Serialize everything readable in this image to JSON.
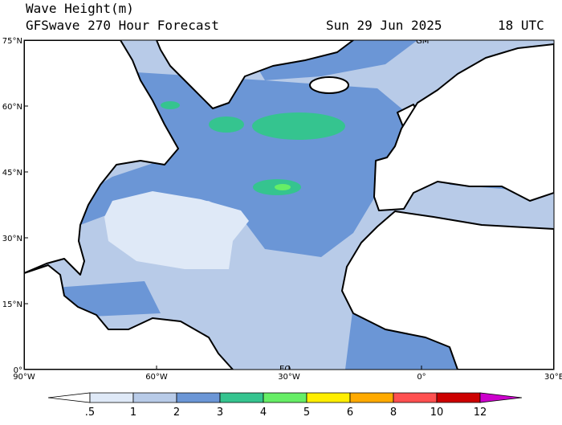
{
  "header": {
    "title": "Wave Height(m)",
    "subtitle": "GFSwave 270 Hour Forecast",
    "date": "Sun 29 Jun 2025",
    "time": "18 UTC"
  },
  "map": {
    "lat_labels": [
      "75°N",
      "60°N",
      "45°N",
      "30°N",
      "15°N",
      "0°"
    ],
    "lon_labels": [
      "90°W",
      "60°W",
      "30°W",
      "0°",
      "30°E"
    ],
    "annotations": [
      "GM",
      "EQ"
    ]
  },
  "colorbar": {
    "labels": [
      ".5",
      "1",
      "2",
      "3",
      "4",
      "5",
      "6",
      "8",
      "10",
      "12"
    ],
    "colors": [
      "#ffffff",
      "#dfe9f7",
      "#b8cbe8",
      "#6b96d6",
      "#35c48f",
      "#66ee66",
      "#ffee00",
      "#ffaa00",
      "#ff5050",
      "#cc0000",
      "#cc00cc"
    ]
  }
}
